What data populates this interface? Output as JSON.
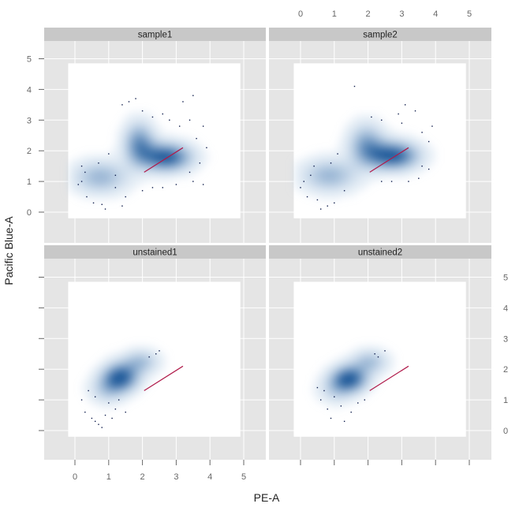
{
  "chart_data": {
    "type": "scatter",
    "layout": "2x2 facets (lattice)",
    "xlabel": "PE-A",
    "ylabel": "Pacific Blue-A",
    "xlim": [
      -1,
      5.5
    ],
    "ylim": [
      -1,
      5.5
    ],
    "x_ticks": [
      0,
      1,
      2,
      3,
      4,
      5
    ],
    "y_ticks": [
      0,
      1,
      2,
      3,
      4,
      5
    ],
    "grid": true,
    "colors": {
      "panel_background": "#e5e5e5",
      "strip_background": "#c8c8c8",
      "gridline": "#ffffff",
      "density_dark": "#1f5a9a",
      "density_light": "#c7dcf0",
      "outlier_points": "#0d1b4a",
      "reference_line": "#b01a4a"
    },
    "reference_line": {
      "x": [
        2.05,
        3.2
      ],
      "y": [
        1.3,
        2.1
      ]
    },
    "panels": [
      {
        "name": "sample1",
        "row": "top",
        "col": "left",
        "density_clusters": [
          {
            "cx": 0.7,
            "cy": 1.1,
            "sx": 0.55,
            "sy": 0.35,
            "w": 0.5
          },
          {
            "cx": 1.85,
            "cy": 2.2,
            "sx": 0.3,
            "sy": 0.45,
            "w": 0.7
          },
          {
            "cx": 2.65,
            "cy": 1.75,
            "sx": 0.5,
            "sy": 0.3,
            "w": 1.0
          }
        ],
        "outliers": [
          [
            0.2,
            1.0
          ],
          [
            0.1,
            0.9
          ],
          [
            0.35,
            0.5
          ],
          [
            0.55,
            0.3
          ],
          [
            0.8,
            0.25
          ],
          [
            0.9,
            0.1
          ],
          [
            1.4,
            0.2
          ],
          [
            1.5,
            0.5
          ],
          [
            1.2,
            0.8
          ],
          [
            0.3,
            1.3
          ],
          [
            0.7,
            1.6
          ],
          [
            1.0,
            1.9
          ],
          [
            1.6,
            3.6
          ],
          [
            1.4,
            3.5
          ],
          [
            1.8,
            3.7
          ],
          [
            2.0,
            3.3
          ],
          [
            2.3,
            3.1
          ],
          [
            2.6,
            3.2
          ],
          [
            3.2,
            3.6
          ],
          [
            3.5,
            3.8
          ],
          [
            3.4,
            3.0
          ],
          [
            3.8,
            2.8
          ],
          [
            3.6,
            2.4
          ],
          [
            3.9,
            2.1
          ],
          [
            3.7,
            1.6
          ],
          [
            3.4,
            1.3
          ],
          [
            3.0,
            0.9
          ],
          [
            2.6,
            0.8
          ],
          [
            2.3,
            0.8
          ],
          [
            2.0,
            0.7
          ],
          [
            3.8,
            0.9
          ],
          [
            3.5,
            1.0
          ],
          [
            3.1,
            2.8
          ],
          [
            2.8,
            3.0
          ],
          [
            1.2,
            1.2
          ],
          [
            0.2,
            1.5
          ]
        ]
      },
      {
        "name": "sample2",
        "row": "top",
        "col": "right",
        "density_clusters": [
          {
            "cx": 0.8,
            "cy": 1.15,
            "sx": 0.55,
            "sy": 0.35,
            "w": 0.5
          },
          {
            "cx": 1.9,
            "cy": 2.15,
            "sx": 0.35,
            "sy": 0.45,
            "w": 0.6
          },
          {
            "cx": 2.7,
            "cy": 1.8,
            "sx": 0.5,
            "sy": 0.3,
            "w": 1.0
          }
        ],
        "outliers": [
          [
            0.1,
            1.0
          ],
          [
            0.0,
            0.8
          ],
          [
            0.2,
            0.5
          ],
          [
            0.5,
            0.4
          ],
          [
            0.8,
            0.2
          ],
          [
            1.0,
            0.3
          ],
          [
            0.6,
            0.1
          ],
          [
            1.3,
            0.7
          ],
          [
            1.6,
            4.1
          ],
          [
            2.1,
            3.1
          ],
          [
            2.4,
            3.0
          ],
          [
            2.9,
            3.2
          ],
          [
            3.1,
            3.5
          ],
          [
            3.4,
            3.3
          ],
          [
            3.0,
            2.9
          ],
          [
            3.6,
            2.6
          ],
          [
            3.8,
            2.3
          ],
          [
            3.9,
            2.8
          ],
          [
            3.6,
            1.5
          ],
          [
            3.5,
            1.1
          ],
          [
            3.2,
            1.0
          ],
          [
            2.7,
            1.0
          ],
          [
            2.4,
            1.0
          ],
          [
            3.8,
            1.4
          ],
          [
            0.4,
            1.5
          ],
          [
            0.9,
            1.6
          ],
          [
            1.1,
            1.9
          ],
          [
            0.3,
            1.2
          ]
        ]
      },
      {
        "name": "unstained1",
        "row": "bottom",
        "col": "left",
        "density_clusters": [
          {
            "cx": 1.3,
            "cy": 1.7,
            "sx": 0.35,
            "sy": 0.3,
            "w": 1.0
          },
          {
            "cx": 1.9,
            "cy": 2.2,
            "sx": 0.35,
            "sy": 0.25,
            "w": 0.45
          },
          {
            "cx": 0.9,
            "cy": 1.3,
            "sx": 0.35,
            "sy": 0.3,
            "w": 0.35
          }
        ],
        "outliers": [
          [
            0.2,
            1.0
          ],
          [
            0.3,
            0.6
          ],
          [
            0.5,
            0.4
          ],
          [
            0.7,
            0.2
          ],
          [
            0.6,
            0.3
          ],
          [
            0.8,
            0.1
          ],
          [
            1.0,
            0.9
          ],
          [
            1.2,
            0.7
          ],
          [
            1.5,
            0.6
          ],
          [
            1.3,
            1.0
          ],
          [
            0.4,
            1.3
          ],
          [
            0.6,
            1.1
          ],
          [
            2.4,
            2.5
          ],
          [
            2.5,
            2.6
          ],
          [
            2.2,
            2.4
          ],
          [
            0.9,
            0.5
          ],
          [
            1.1,
            0.4
          ]
        ]
      },
      {
        "name": "unstained2",
        "row": "bottom",
        "col": "right",
        "density_clusters": [
          {
            "cx": 1.4,
            "cy": 1.65,
            "sx": 0.35,
            "sy": 0.28,
            "w": 1.0
          },
          {
            "cx": 2.0,
            "cy": 2.2,
            "sx": 0.35,
            "sy": 0.25,
            "w": 0.45
          },
          {
            "cx": 1.0,
            "cy": 1.3,
            "sx": 0.35,
            "sy": 0.3,
            "w": 0.3
          }
        ],
        "outliers": [
          [
            0.5,
            1.4
          ],
          [
            0.6,
            1.0
          ],
          [
            0.8,
            0.7
          ],
          [
            0.9,
            0.4
          ],
          [
            1.2,
            0.8
          ],
          [
            1.5,
            0.6
          ],
          [
            1.7,
            0.9
          ],
          [
            1.3,
            0.3
          ],
          [
            2.5,
            2.6
          ],
          [
            2.3,
            2.4
          ],
          [
            2.2,
            2.5
          ],
          [
            0.7,
            1.3
          ],
          [
            1.0,
            1.1
          ],
          [
            1.9,
            1.0
          ]
        ]
      }
    ]
  }
}
